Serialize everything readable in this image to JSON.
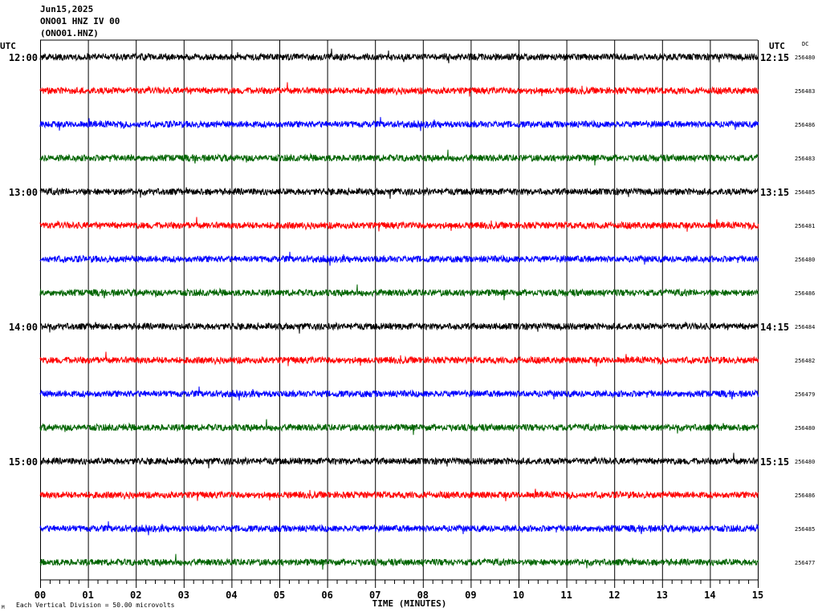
{
  "header": {
    "date": "Jun15,2025",
    "station": "ONO01 HNZ IV 00",
    "channel": "(ONO01.HNZ)"
  },
  "left_axis_title": "UTC",
  "right_axis_title": "UTC",
  "dc_label": "DC",
  "footer": {
    "scale_text": "Each Vertical Division =    50.00 microvolts",
    "marker": "M"
  },
  "chart_data": {
    "type": "line",
    "xlabel": "TIME (MINUTES)",
    "xlim": [
      0,
      15
    ],
    "x_ticks": [
      "00",
      "01",
      "02",
      "03",
      "04",
      "05",
      "06",
      "07",
      "08",
      "09",
      "10",
      "11",
      "12",
      "13",
      "14",
      "15"
    ],
    "trace_colors": [
      "#000000",
      "#ff0000",
      "#0000ff",
      "#006400"
    ],
    "hour_labels_left": [
      "12:00",
      "13:00",
      "14:00",
      "15:00"
    ],
    "hour_labels_right": [
      "12:15",
      "13:15",
      "14:15",
      "15:15"
    ],
    "dc_values": [
      "256480",
      "256483",
      "256486",
      "256483",
      "256485",
      "256481",
      "256480",
      "256486",
      "256484",
      "256482",
      "256479",
      "256480",
      "256480",
      "256486",
      "256485",
      "256477"
    ]
  }
}
